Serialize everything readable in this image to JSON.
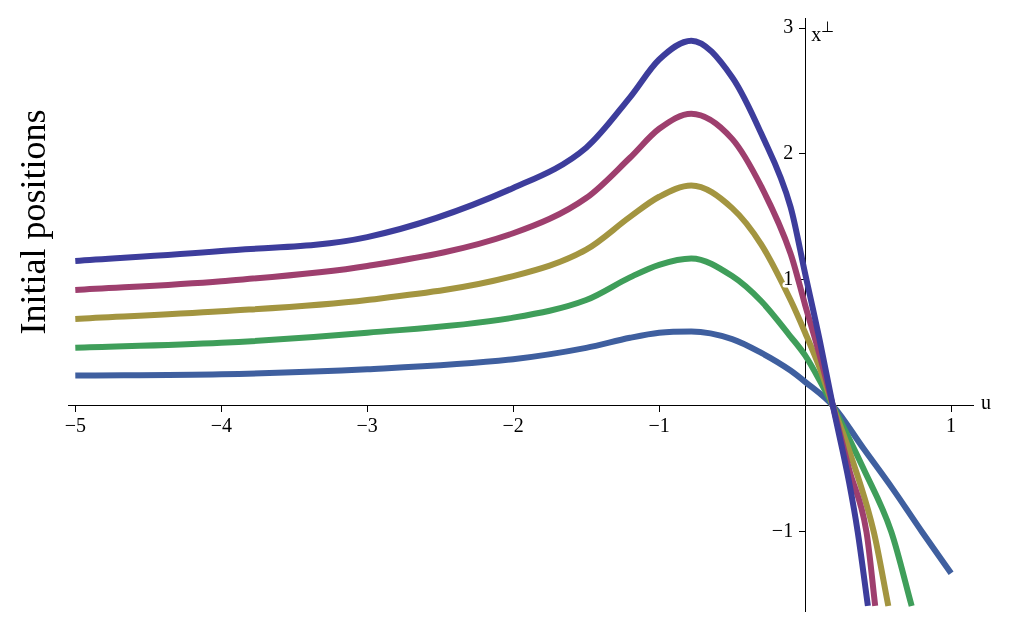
{
  "chart_data": {
    "type": "line",
    "title": "Initial positions",
    "xlabel": "u",
    "ylabel": "x$^{⊥}$",
    "xlim": [
      -5.05,
      1.15
    ],
    "ylim": [
      -1.63,
      3.08
    ],
    "xticks": [
      -5,
      -4,
      -3,
      -2,
      -1,
      {
        "value": 0,
        "label": null
      },
      1
    ],
    "yticks": [
      -1,
      {
        "value": 0,
        "label": null
      },
      1,
      2,
      3
    ],
    "grid": false,
    "legend": false,
    "marker": "none",
    "line_style": "solid",
    "series": [
      {
        "color": "#3d3d9c",
        "x": [
          -5,
          -4,
          -3,
          -2,
          -1.5,
          -1.2,
          -1,
          -0.78,
          -0.5,
          -0.3,
          -0.1,
          0,
          0.1,
          0.19,
          0.3,
          0.36,
          0.43
        ],
        "values": [
          1.15,
          1.23,
          1.34,
          1.73,
          2.05,
          2.45,
          2.75,
          2.9,
          2.61,
          2.16,
          1.58,
          1.05,
          0.52,
          0,
          -0.6,
          -1,
          -1.59
        ]
      },
      {
        "color": "#9e3f6e",
        "x": [
          -5,
          -4,
          -3,
          -2,
          -1.5,
          -1.2,
          -1,
          -0.78,
          -0.5,
          -0.3,
          -0.1,
          0,
          0.1,
          0.19,
          0.3,
          0.42,
          0.48
        ],
        "values": [
          0.92,
          0.99,
          1.11,
          1.37,
          1.65,
          1.97,
          2.2,
          2.32,
          2.12,
          1.74,
          1.21,
          0.8,
          0.4,
          0,
          -0.5,
          -1,
          -1.59
        ]
      },
      {
        "color": "#a39540",
        "x": [
          -5,
          -4,
          -3,
          -2,
          -1.5,
          -1.2,
          -1,
          -0.78,
          -0.5,
          -0.3,
          -0.1,
          0,
          0.1,
          0.19,
          0.3,
          0.47,
          0.57
        ],
        "values": [
          0.69,
          0.75,
          0.84,
          1.03,
          1.24,
          1.5,
          1.66,
          1.75,
          1.57,
          1.28,
          0.84,
          0.58,
          0.3,
          0,
          -0.35,
          -1,
          -1.59
        ]
      },
      {
        "color": "#3f9e5a",
        "x": [
          -5,
          -4,
          -3,
          -2,
          -1.5,
          -1.2,
          -1,
          -0.78,
          -0.5,
          -0.3,
          -0.1,
          0,
          0.1,
          0.19,
          0.4,
          0.59,
          0.73
        ],
        "values": [
          0.46,
          0.5,
          0.58,
          0.7,
          0.84,
          1.02,
          1.12,
          1.17,
          1.03,
          0.83,
          0.55,
          0.4,
          0.2,
          0,
          -0.5,
          -1,
          -1.59
        ]
      },
      {
        "color": "#3f5f9f",
        "x": [
          -5,
          -4,
          -3,
          -2,
          -1.5,
          -1.2,
          -1,
          -0.78,
          -0.5,
          -0.3,
          -0.1,
          0,
          0.19,
          0.4,
          0.6,
          0.8,
          1
        ],
        "values": [
          0.24,
          0.25,
          0.29,
          0.37,
          0.46,
          0.54,
          0.58,
          0.59,
          0.53,
          0.42,
          0.28,
          0.19,
          0,
          -0.34,
          -0.66,
          -1,
          -1.33
        ]
      }
    ]
  }
}
